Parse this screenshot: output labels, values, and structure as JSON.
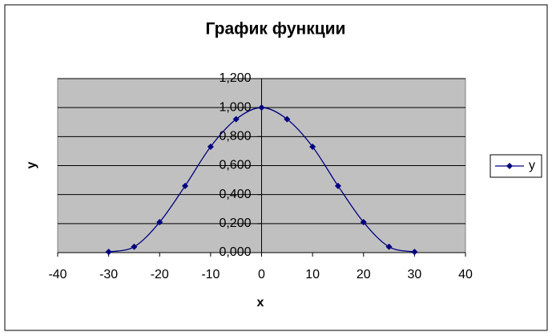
{
  "chart_data": {
    "type": "line",
    "title": "График функции",
    "x_label": "x",
    "y_label": "y",
    "x": [
      -30,
      -25,
      -20,
      -15,
      -10,
      -5,
      0,
      5,
      10,
      15,
      20,
      25,
      30
    ],
    "series": [
      {
        "name": "y",
        "color": "#000080",
        "values": [
          0.005,
          0.04,
          0.21,
          0.46,
          0.73,
          0.92,
          1.0,
          0.92,
          0.73,
          0.46,
          0.21,
          0.04,
          0.005
        ]
      }
    ],
    "smooth": true,
    "xlim": [
      -40,
      40
    ],
    "xticks": [
      -40,
      -30,
      -20,
      -10,
      0,
      10,
      20,
      30,
      40
    ],
    "ylim": [
      0,
      1.2
    ],
    "yticks": [
      {
        "value": 0,
        "label": "0,000"
      },
      {
        "value": 0.2,
        "label": "0,200"
      },
      {
        "value": 0.4,
        "label": "0,400"
      },
      {
        "value": 0.6,
        "label": "0,600"
      },
      {
        "value": 0.8,
        "label": "0,800"
      },
      {
        "value": 1.0,
        "label": "1,000"
      },
      {
        "value": 1.2,
        "label": "1,200"
      }
    ],
    "grid": true,
    "legend": "right",
    "plot_background": "#c0c0c0"
  }
}
